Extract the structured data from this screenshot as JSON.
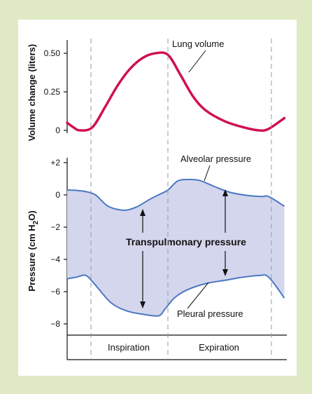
{
  "colors": {
    "background_frame": "#dfe9c4",
    "panel": "#ffffff",
    "volume_line": "#d0114e",
    "pressure_line": "#4a78c2",
    "pressure_fill": "#d4d6ee",
    "phase_divider": "#9a9a9a"
  },
  "chart_data": [
    {
      "type": "line",
      "ylabel": "Volume change (liters)",
      "ylim": [
        0,
        0.5
      ],
      "yticks": [
        "0",
        "0.25",
        "0.50"
      ],
      "grid": false,
      "series": [
        {
          "name": "Lung volume",
          "t": [
            0,
            0.1,
            0.2,
            0.4,
            0.6,
            0.8,
            1.0,
            1.2,
            1.4,
            1.6,
            1.8,
            2.0,
            2.2,
            2.5,
            2.8,
            3.05,
            3.2,
            3.45
          ],
          "values": [
            0.05,
            0.02,
            0.0,
            0.02,
            0.15,
            0.29,
            0.4,
            0.47,
            0.5,
            0.49,
            0.36,
            0.22,
            0.13,
            0.06,
            0.02,
            0.0,
            0.01,
            0.08
          ]
        }
      ],
      "annotations": [
        {
          "text": "Lung volume"
        }
      ]
    },
    {
      "type": "area",
      "ylabel": "Pressure (cm H",
      "ylabel_subscript": "2",
      "ylabel_suffix": "O)",
      "ylim": [
        -8.5,
        2
      ],
      "yticks": [
        "+2",
        "0",
        "−2",
        "−4",
        "−6",
        "−8"
      ],
      "grid": false,
      "series": [
        {
          "name": "Alveolar pressure",
          "t": [
            0,
            0.15,
            0.3,
            0.45,
            0.65,
            0.9,
            1.1,
            1.3,
            1.45,
            1.6,
            1.75,
            1.9,
            2.1,
            2.35,
            2.6,
            2.9,
            3.1,
            3.2,
            3.45
          ],
          "values": [
            0.3,
            0.28,
            0.2,
            0.0,
            -0.7,
            -0.95,
            -0.75,
            -0.3,
            0.0,
            0.3,
            0.85,
            0.95,
            0.9,
            0.5,
            0.15,
            -0.05,
            -0.1,
            -0.1,
            -0.7
          ]
        },
        {
          "name": "Pleural pressure",
          "t": [
            0,
            0.15,
            0.3,
            0.45,
            0.7,
            0.95,
            1.2,
            1.45,
            1.55,
            1.7,
            1.9,
            2.2,
            2.5,
            2.8,
            3.05,
            3.2,
            3.45
          ],
          "values": [
            -5.2,
            -5.1,
            -5.0,
            -5.6,
            -6.7,
            -7.2,
            -7.4,
            -7.5,
            -7.1,
            -6.4,
            -5.9,
            -5.5,
            -5.3,
            -5.1,
            -5.0,
            -5.1,
            -6.4
          ]
        }
      ],
      "annotations": [
        {
          "text": "Alveolar pressure"
        },
        {
          "text": "Pleural pressure"
        },
        {
          "text": "Transpulmonary pressure"
        }
      ],
      "phases": [
        {
          "label": "Inspiration",
          "start": 0.3,
          "end": 1.45
        },
        {
          "label": "Expiration",
          "start": 1.45,
          "end": 3.05
        }
      ]
    }
  ]
}
